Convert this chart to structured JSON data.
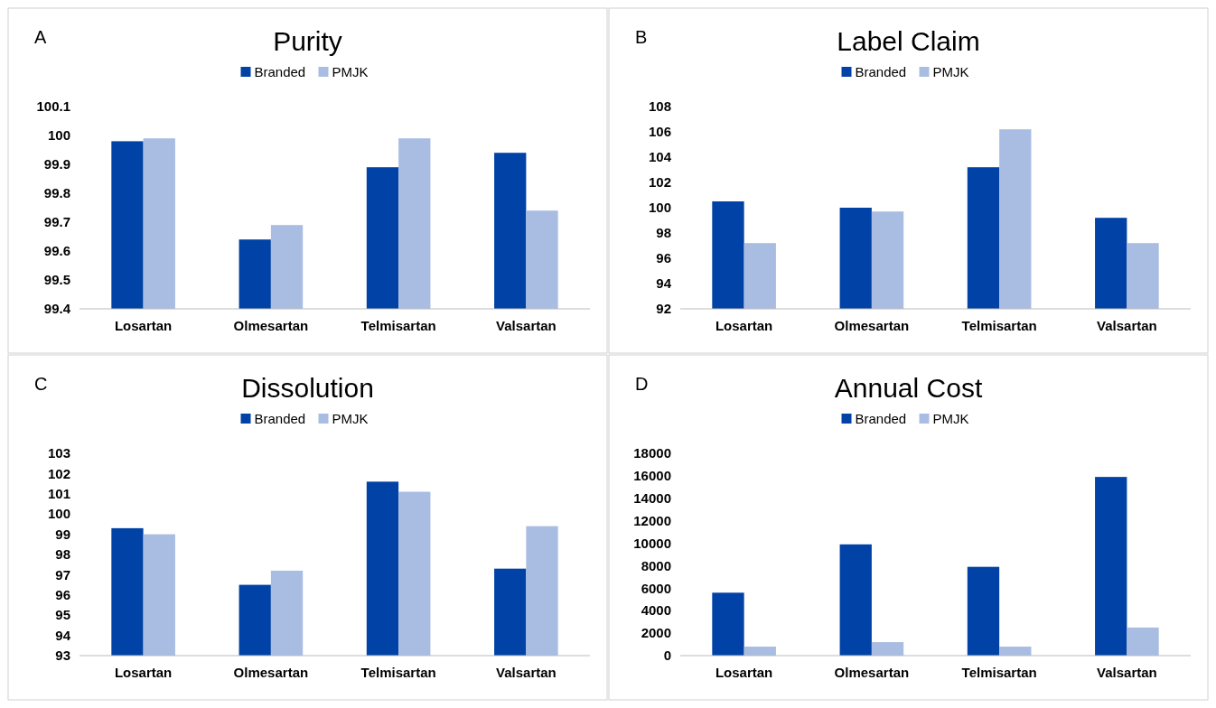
{
  "chart_data": [
    {
      "type": "bar",
      "title": "Purity",
      "annotations": [
        "A"
      ],
      "categories": [
        "Losartan",
        "Olmesartan",
        "Telmisartan",
        "Valsartan"
      ],
      "series": [
        {
          "name": "Branded",
          "color": "#0042a5",
          "values": [
            99.98,
            99.64,
            99.89,
            99.94
          ]
        },
        {
          "name": "PMJK",
          "color": "#a9bde3",
          "values": [
            99.99,
            99.69,
            99.99,
            99.74
          ]
        }
      ],
      "ylim": [
        99.4,
        100.1
      ],
      "yticks": [
        99.4,
        99.5,
        99.6,
        99.7,
        99.8,
        99.9,
        {
          "value": 100,
          "label": "100"
        },
        100.1
      ],
      "grid": false,
      "legend": "top"
    },
    {
      "type": "bar",
      "title": "Label Claim",
      "annotations": [
        "B"
      ],
      "categories": [
        "Losartan",
        "Olmesartan",
        "Telmisartan",
        "Valsartan"
      ],
      "series": [
        {
          "name": "Branded",
          "color": "#0042a5",
          "values": [
            100.5,
            100.0,
            103.2,
            99.2
          ]
        },
        {
          "name": "PMJK",
          "color": "#a9bde3",
          "values": [
            97.2,
            99.7,
            106.2,
            97.2
          ]
        }
      ],
      "ylim": [
        92,
        108
      ],
      "yticks": [
        92,
        94,
        96,
        98,
        100,
        102,
        104,
        106,
        108
      ],
      "grid": false,
      "legend": "top"
    },
    {
      "type": "bar",
      "title": "Dissolution",
      "annotations": [
        "C"
      ],
      "categories": [
        "Losartan",
        "Olmesartan",
        "Telmisartan",
        "Valsartan"
      ],
      "series": [
        {
          "name": "Branded",
          "color": "#0042a5",
          "values": [
            99.3,
            96.5,
            101.6,
            97.3
          ]
        },
        {
          "name": "PMJK",
          "color": "#a9bde3",
          "values": [
            99.0,
            97.2,
            101.1,
            99.4
          ]
        }
      ],
      "ylim": [
        93,
        103
      ],
      "yticks": [
        93,
        94,
        95,
        96,
        97,
        98,
        99,
        100,
        101,
        102,
        103
      ],
      "grid": false,
      "legend": "top"
    },
    {
      "type": "bar",
      "title": "Annual Cost",
      "annotations": [
        "D"
      ],
      "categories": [
        "Losartan",
        "Olmesartan",
        "Telmisartan",
        "Valsartan"
      ],
      "series": [
        {
          "name": "Branded",
          "color": "#0042a5",
          "values": [
            5600,
            9900,
            7900,
            15900
          ]
        },
        {
          "name": "PMJK",
          "color": "#a9bde3",
          "values": [
            800,
            1200,
            800,
            2500
          ]
        }
      ],
      "ylim": [
        0,
        18000
      ],
      "yticks": [
        0,
        2000,
        4000,
        6000,
        8000,
        10000,
        12000,
        14000,
        16000,
        18000
      ],
      "grid": false,
      "legend": "top"
    }
  ]
}
